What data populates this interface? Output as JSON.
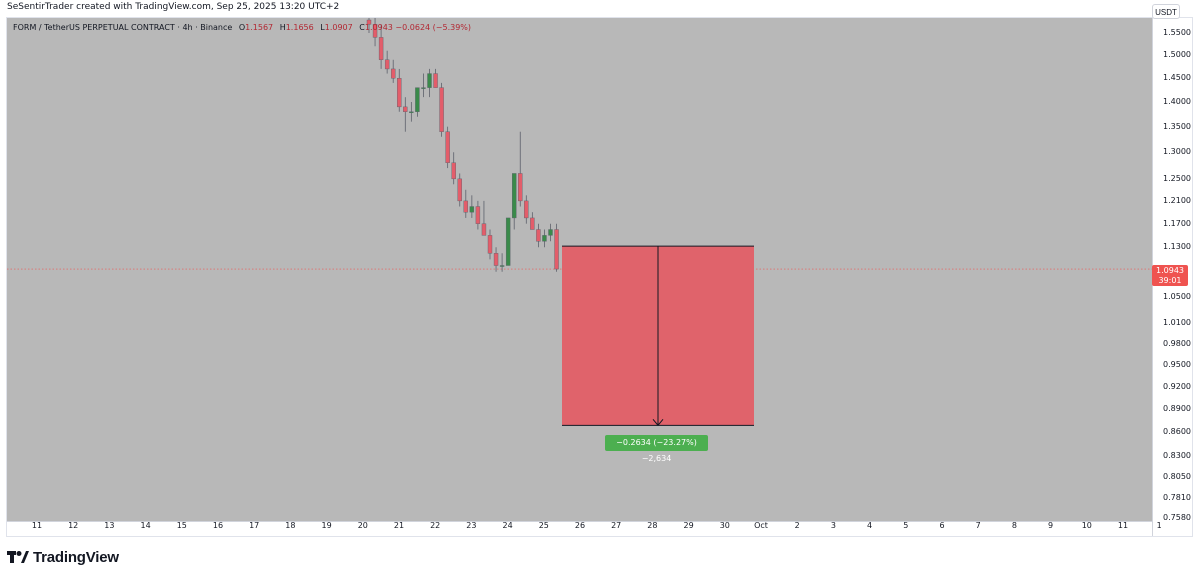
{
  "caption": "SeSentirTrader created with TradingView.com, Sep 25, 2025 13:20 UTC+2",
  "legend": {
    "symbol": "FORM / TetherUS PERPETUAL CONTRACT · 4h · Binance",
    "o_label": "O",
    "o_value": "1.1567",
    "h_label": "H",
    "h_value": "1.1656",
    "l_label": "L",
    "l_value": "1.0907",
    "c_label": "C",
    "c_value": "1.0943",
    "change": "−0.0624 (−5.39%)"
  },
  "currency_button": "USDT",
  "current_price": {
    "value": "1.0943",
    "countdown": "39:01",
    "color": "#ef5350"
  },
  "measure": {
    "label": "−0.2634 (−23.27%) −2,634",
    "from": 1.132,
    "to": 0.869,
    "color_box": "#e0636b",
    "color_label": "#4caf50"
  },
  "brand": "TradingView",
  "colors": {
    "up": "#26a69a",
    "down": "#ef5350",
    "up_body": "#3a8a4a",
    "down_body": "#e35d6a",
    "background": "#b8b8b8"
  },
  "chart_data": {
    "type": "candlestick",
    "price_ticks": [
      "1.5500",
      "1.5000",
      "1.4500",
      "1.4000",
      "1.3500",
      "1.3000",
      "1.2500",
      "1.2100",
      "1.1700",
      "1.1300",
      "1.0500",
      "1.0100",
      "0.9800",
      "0.9500",
      "0.9200",
      "0.8900",
      "0.8600",
      "0.8300",
      "0.8050",
      "0.7810",
      "0.7580"
    ],
    "time_ticks": [
      "11",
      "12",
      "13",
      "14",
      "15",
      "16",
      "17",
      "18",
      "19",
      "20",
      "21",
      "22",
      "23",
      "24",
      "25",
      "26",
      "27",
      "28",
      "29",
      "30",
      "Oct",
      "2",
      "3",
      "4",
      "5",
      "6",
      "7",
      "8",
      "9",
      "10",
      "11",
      "1"
    ],
    "scale": "log",
    "candles": [
      {
        "o": 1.58,
        "h": 1.6,
        "l": 1.55,
        "c": 1.57
      },
      {
        "o": 1.57,
        "h": 1.59,
        "l": 1.52,
        "c": 1.54
      },
      {
        "o": 1.54,
        "h": 1.57,
        "l": 1.47,
        "c": 1.49
      },
      {
        "o": 1.49,
        "h": 1.51,
        "l": 1.46,
        "c": 1.47
      },
      {
        "o": 1.47,
        "h": 1.49,
        "l": 1.44,
        "c": 1.45
      },
      {
        "o": 1.45,
        "h": 1.47,
        "l": 1.38,
        "c": 1.39
      },
      {
        "o": 1.39,
        "h": 1.41,
        "l": 1.34,
        "c": 1.38
      },
      {
        "o": 1.38,
        "h": 1.4,
        "l": 1.36,
        "c": 1.38
      },
      {
        "o": 1.38,
        "h": 1.43,
        "l": 1.37,
        "c": 1.43
      },
      {
        "o": 1.43,
        "h": 1.46,
        "l": 1.41,
        "c": 1.43
      },
      {
        "o": 1.43,
        "h": 1.47,
        "l": 1.41,
        "c": 1.46
      },
      {
        "o": 1.46,
        "h": 1.47,
        "l": 1.43,
        "c": 1.43
      },
      {
        "o": 1.43,
        "h": 1.44,
        "l": 1.33,
        "c": 1.34
      },
      {
        "o": 1.34,
        "h": 1.35,
        "l": 1.27,
        "c": 1.28
      },
      {
        "o": 1.28,
        "h": 1.3,
        "l": 1.24,
        "c": 1.25
      },
      {
        "o": 1.25,
        "h": 1.26,
        "l": 1.2,
        "c": 1.21
      },
      {
        "o": 1.21,
        "h": 1.23,
        "l": 1.18,
        "c": 1.19
      },
      {
        "o": 1.19,
        "h": 1.22,
        "l": 1.18,
        "c": 1.2
      },
      {
        "o": 1.2,
        "h": 1.21,
        "l": 1.16,
        "c": 1.17
      },
      {
        "o": 1.17,
        "h": 1.21,
        "l": 1.15,
        "c": 1.15
      },
      {
        "o": 1.15,
        "h": 1.16,
        "l": 1.11,
        "c": 1.12
      },
      {
        "o": 1.12,
        "h": 1.13,
        "l": 1.09,
        "c": 1.1
      },
      {
        "o": 1.1,
        "h": 1.12,
        "l": 1.09,
        "c": 1.1
      },
      {
        "o": 1.1,
        "h": 1.18,
        "l": 1.1,
        "c": 1.18
      },
      {
        "o": 1.18,
        "h": 1.26,
        "l": 1.16,
        "c": 1.26
      },
      {
        "o": 1.26,
        "h": 1.34,
        "l": 1.2,
        "c": 1.21
      },
      {
        "o": 1.21,
        "h": 1.22,
        "l": 1.17,
        "c": 1.18
      },
      {
        "o": 1.18,
        "h": 1.19,
        "l": 1.16,
        "c": 1.16
      },
      {
        "o": 1.16,
        "h": 1.17,
        "l": 1.13,
        "c": 1.14
      },
      {
        "o": 1.14,
        "h": 1.16,
        "l": 1.13,
        "c": 1.15
      },
      {
        "o": 1.15,
        "h": 1.17,
        "l": 1.14,
        "c": 1.16
      },
      {
        "o": 1.16,
        "h": 1.17,
        "l": 1.09,
        "c": 1.0943
      }
    ]
  }
}
